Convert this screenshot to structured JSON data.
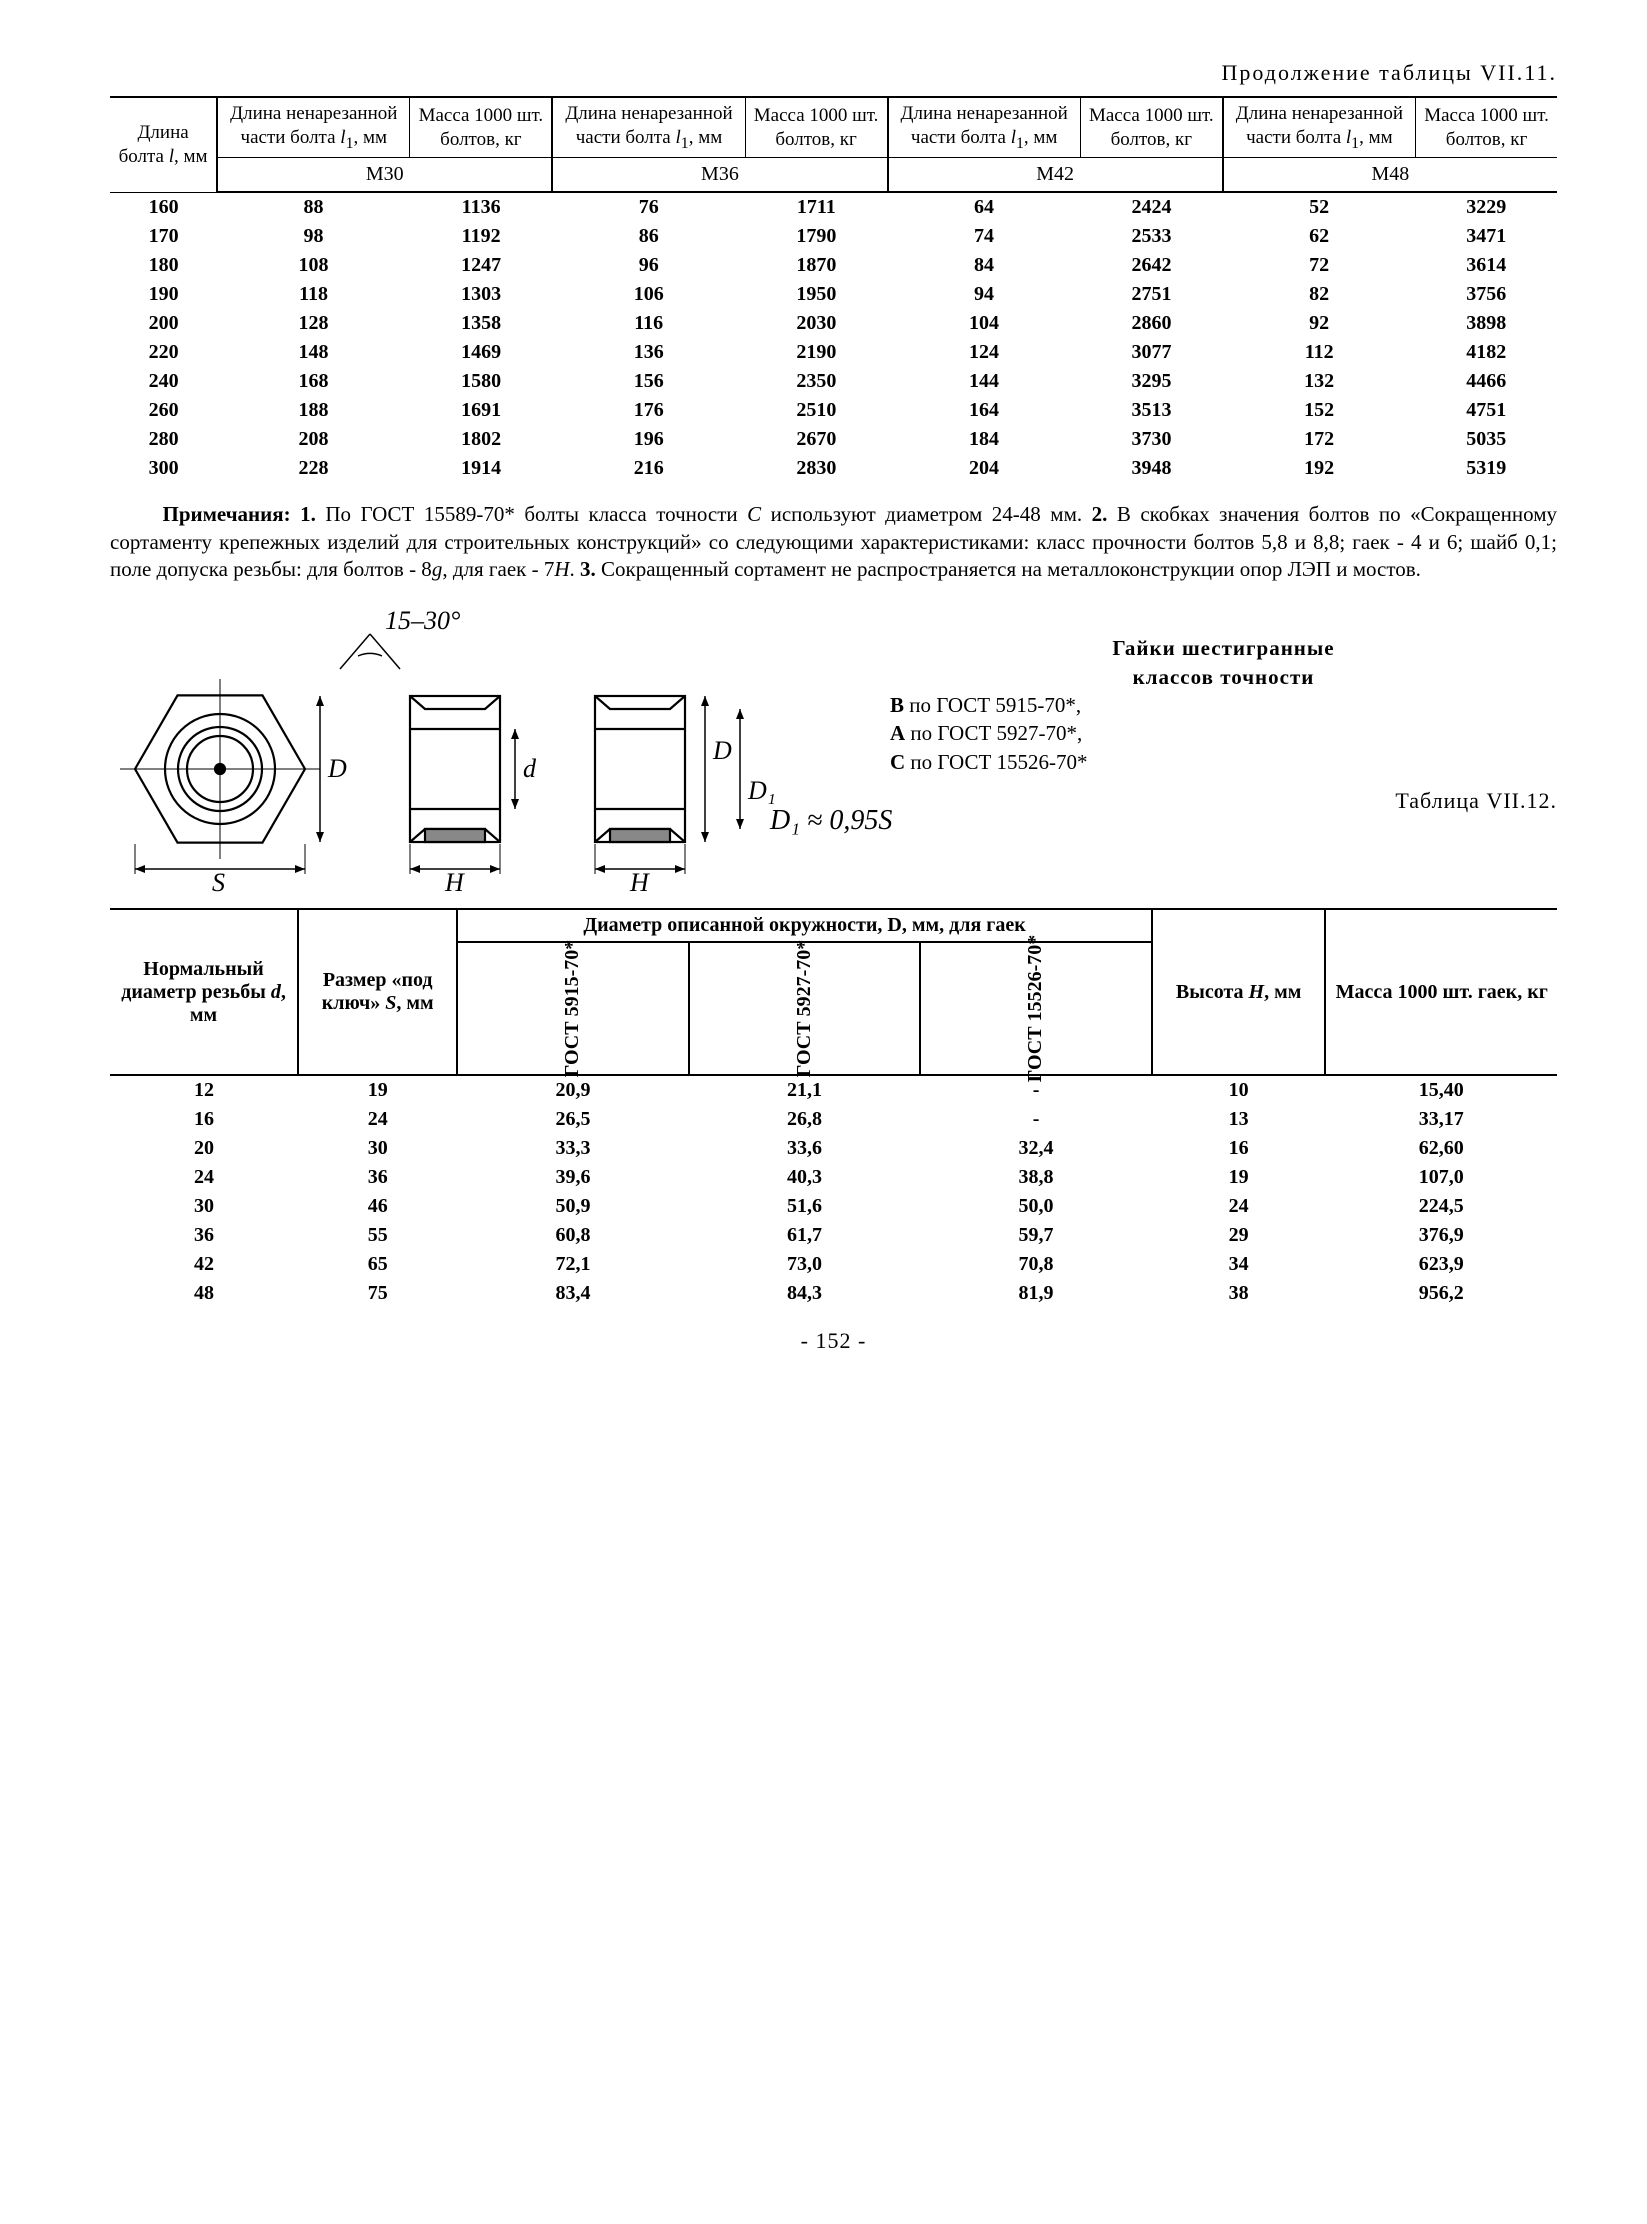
{
  "continuation": "Продолжение таблицы VII.11.",
  "table1": {
    "col0_header": "Длина болта <span class='i'>l</span>, мм",
    "headerA": "Длина ненаре­занной части болта <span class='i'>l</span><sub>1</sub>, мм",
    "headerB": "Масса 1000 шт. болтов, кг",
    "groups": [
      "М30",
      "М36",
      "М42",
      "М48"
    ],
    "rows": [
      [
        "160",
        "88",
        "1136",
        "76",
        "1711",
        "64",
        "2424",
        "52",
        "3229"
      ],
      [
        "170",
        "98",
        "1192",
        "86",
        "1790",
        "74",
        "2533",
        "62",
        "3471"
      ],
      [
        "180",
        "108",
        "1247",
        "96",
        "1870",
        "84",
        "2642",
        "72",
        "3614"
      ],
      [
        "190",
        "118",
        "1303",
        "106",
        "1950",
        "94",
        "2751",
        "82",
        "3756"
      ],
      [
        "200",
        "128",
        "1358",
        "116",
        "2030",
        "104",
        "2860",
        "92",
        "3898"
      ],
      [
        "220",
        "148",
        "1469",
        "136",
        "2190",
        "124",
        "3077",
        "112",
        "4182"
      ],
      [
        "240",
        "168",
        "1580",
        "156",
        "2350",
        "144",
        "3295",
        "132",
        "4466"
      ],
      [
        "260",
        "188",
        "1691",
        "176",
        "2510",
        "164",
        "3513",
        "152",
        "4751"
      ],
      [
        "280",
        "208",
        "1802",
        "196",
        "2670",
        "184",
        "3730",
        "172",
        "5035"
      ],
      [
        "300",
        "228",
        "1914",
        "216",
        "2830",
        "204",
        "3948",
        "192",
        "5319"
      ]
    ]
  },
  "notes_html": "<b>Примечания: 1.</b> По ГОСТ 15589-70* болты класса точности <i>С</i> используют диаметром 24-48 мм. <b>2.</b> В скобках значения болтов по «Сокращенному сортаменту крепежных изделий для строительных конструкций» со следующими характеристиками: класс прочности болтов 5,8 и 8,8; гаек - 4 и 6; шайб 0,1; поле допуска резьбы: для болтов - 8<i>g</i>, для гаек - 7<i>H</i>. <b>3.</b> Сокращенный сортамент не распространяется на металлоконструкции опор ЛЭП и мостов.",
  "figure": {
    "angle": "15–30°",
    "S": "S",
    "H": "H",
    "D": "D",
    "d": "d",
    "D1": "D₁",
    "formula": "D₁ ≈ 0,95S"
  },
  "nuts_block": {
    "title1": "Гайки шестигранные",
    "title2": "классов  точности",
    "lines": [
      "<b>В</b> по ГОСТ 5915-70*,",
      "<b>А</b> по ГОСТ 5927-70*,",
      "<b>С</b> по ГОСТ 15526-70*"
    ]
  },
  "table2_number": "Таблица VII.12.",
  "table2": {
    "col_d": "Нормальный диаметр резьбы <span class='i'>d</span>, мм",
    "col_S": "Размер «под ключ» <span class='i'>S</span>, мм",
    "colspan_D": "Диаметр описанной окружности, D, мм, для гаек",
    "col_g1": "ГОСТ 5915-70*",
    "col_g2": "ГОСТ 5927-70*",
    "col_g3": "ГОСТ 15526-70*",
    "col_H": "Высота <span class='i'>H</span>, мм",
    "col_m": "Масса 1000 шт. гаек, кг",
    "rows": [
      [
        "12",
        "19",
        "20,9",
        "21,1",
        "-",
        "10",
        "15,40"
      ],
      [
        "16",
        "24",
        "26,5",
        "26,8",
        "-",
        "13",
        "33,17"
      ],
      [
        "20",
        "30",
        "33,3",
        "33,6",
        "32,4",
        "16",
        "62,60"
      ],
      [
        "24",
        "36",
        "39,6",
        "40,3",
        "38,8",
        "19",
        "107,0"
      ],
      [
        "30",
        "46",
        "50,9",
        "51,6",
        "50,0",
        "24",
        "224,5"
      ],
      [
        "36",
        "55",
        "60,8",
        "61,7",
        "59,7",
        "29",
        "376,9"
      ],
      [
        "42",
        "65",
        "72,1",
        "73,0",
        "70,8",
        "34",
        "623,9"
      ],
      [
        "48",
        "75",
        "83,4",
        "84,3",
        "81,9",
        "38",
        "956,2"
      ]
    ]
  },
  "page": "- 152 -"
}
